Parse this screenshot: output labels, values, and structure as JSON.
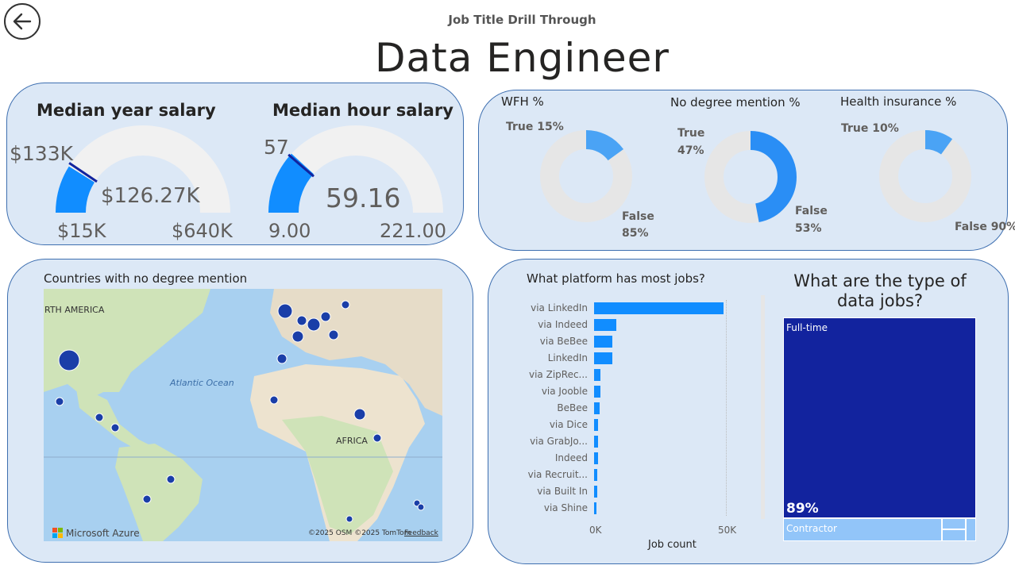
{
  "header": {
    "subtitle": "Job Title Drill Through",
    "title": "Data Engineer"
  },
  "icons": {
    "back": "arrow-left-circle-icon"
  },
  "colors": {
    "accent": "#118dff",
    "dark_navy": "#12239e",
    "card_bg": "#dce8f6",
    "light_blue": "#92c5f9",
    "track": "#f1f1f1"
  },
  "gauges": {
    "year": {
      "title": "Median year salary",
      "value_label": "$126.27K",
      "target_label": "$133K",
      "min_label": "$15K",
      "max_label": "$640K",
      "value": 126.27,
      "target": 133,
      "min": 15,
      "max": 640
    },
    "hour": {
      "title": "Median hour salary",
      "value_label": "59.16",
      "target_label": "57",
      "min_label": "9.00",
      "max_label": "221.00",
      "value": 59.16,
      "target": 57,
      "min": 9,
      "max": 221
    }
  },
  "donuts": {
    "wfh": {
      "title": "WFH %",
      "true_label": "True 15%",
      "false_label_1": "False",
      "false_label_2": "85%",
      "true_pct": 15
    },
    "no_degree": {
      "title": "No degree mention %",
      "true_label_1": "True",
      "true_label_2": "47%",
      "false_label_1": "False",
      "false_label_2": "53%",
      "true_pct": 47
    },
    "health": {
      "title": "Health insurance %",
      "true_label": "True 10%",
      "false_label": "False 90%",
      "true_pct": 10
    }
  },
  "map": {
    "title": "Countries with no degree mention",
    "labels": {
      "north_america": "RTH AMERICA",
      "ocean": "Atlantic Ocean",
      "africa": "AFRICA"
    },
    "logo_text": "Microsoft Azure",
    "attribution": "©2025 OSM  ©2025 TomTom",
    "feedback": "Feedback"
  },
  "platform_chart": {
    "chart_data": {
      "type": "bar",
      "title": "What platform has most jobs?",
      "xlabel": "Job count",
      "ylabel": "",
      "categories": [
        "via LinkedIn",
        "via Indeed",
        "via BeBee",
        "LinkedIn",
        "via ZipRec...",
        "via Jooble",
        "BeBee",
        "via Dice",
        "via GrabJo...",
        "Indeed",
        "via Recruit...",
        "via Built In",
        "via Shine"
      ],
      "values": [
        49000,
        8500,
        7000,
        6800,
        2500,
        2300,
        2200,
        1600,
        1500,
        1500,
        1300,
        1100,
        900
      ],
      "xlim": [
        0,
        50000
      ],
      "x_ticks": [
        "0K",
        "50K"
      ]
    }
  },
  "job_types": {
    "title_line1": "What are the type of",
    "title_line2": "data jobs?",
    "items": [
      {
        "label": "Full-time",
        "pct_label": "89%",
        "pct": 89
      },
      {
        "label": "Contractor"
      }
    ]
  }
}
